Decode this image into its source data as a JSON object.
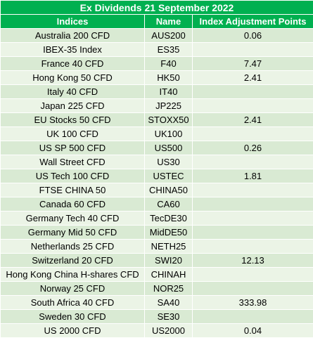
{
  "table": {
    "title": "Ex Dividends 21 September 2022",
    "headers": [
      "Indices",
      "Name",
      "Index Adjustment Points"
    ],
    "rows": [
      {
        "index": "Australia 200 CFD",
        "name": "AUS200",
        "points": "0.06"
      },
      {
        "index": "IBEX-35 Index",
        "name": "ES35",
        "points": ""
      },
      {
        "index": "France 40 CFD",
        "name": "F40",
        "points": "7.47"
      },
      {
        "index": "Hong Kong 50 CFD",
        "name": "HK50",
        "points": "2.41"
      },
      {
        "index": "Italy 40 CFD",
        "name": "IT40",
        "points": ""
      },
      {
        "index": "Japan 225 CFD",
        "name": "JP225",
        "points": ""
      },
      {
        "index": "EU Stocks 50 CFD",
        "name": "STOXX50",
        "points": "2.41"
      },
      {
        "index": "UK 100 CFD",
        "name": "UK100",
        "points": ""
      },
      {
        "index": "US SP 500 CFD",
        "name": "US500",
        "points": "0.26"
      },
      {
        "index": "Wall Street CFD",
        "name": "US30",
        "points": ""
      },
      {
        "index": "US Tech 100 CFD",
        "name": "USTEC",
        "points": "1.81"
      },
      {
        "index": "FTSE CHINA 50",
        "name": "CHINA50",
        "points": ""
      },
      {
        "index": "Canada 60 CFD",
        "name": "CA60",
        "points": ""
      },
      {
        "index": "Germany Tech 40 CFD",
        "name": "TecDE30",
        "points": ""
      },
      {
        "index": "Germany Mid 50 CFD",
        "name": "MidDE50",
        "points": ""
      },
      {
        "index": "Netherlands 25 CFD",
        "name": "NETH25",
        "points": ""
      },
      {
        "index": "Switzerland 20 CFD",
        "name": "SWI20",
        "points": "12.13"
      },
      {
        "index": "Hong Kong China H-shares CFD",
        "name": "CHINAH",
        "points": ""
      },
      {
        "index": "Norway 25 CFD",
        "name": "NOR25",
        "points": ""
      },
      {
        "index": "South Africa 40 CFD",
        "name": "SA40",
        "points": "333.98"
      },
      {
        "index": "Sweden 30 CFD",
        "name": "SE30",
        "points": ""
      },
      {
        "index": "US 2000 CFD",
        "name": "US2000",
        "points": "0.04"
      }
    ]
  },
  "colors": {
    "header_bg": "#00b050",
    "header_text": "#ffffff",
    "row_band_a": "#d9ead3",
    "row_band_b": "#ebf4e6"
  }
}
